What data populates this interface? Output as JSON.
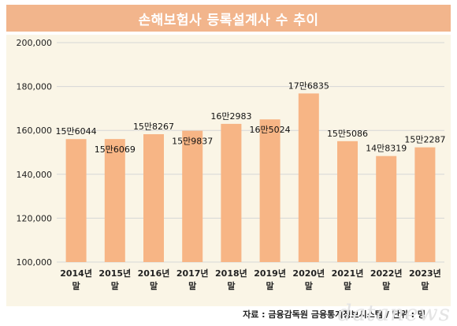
{
  "header": {
    "title": "손해보험사 등록설계사 수 추이"
  },
  "footer": {
    "source": "자료 : 금융감독원 금융통계정보시스템 / 단위 : 명"
  },
  "watermark": {
    "text": "datanews"
  },
  "colors": {
    "bar": "#f7b585",
    "title_bg": "#f2b58c",
    "panel_bg": "#faf5e6",
    "grid": "#d6d6d6"
  },
  "chart_data": {
    "type": "bar",
    "title": "손해보험사 등록설계사 수 추이",
    "categories": [
      [
        "2014년",
        "말"
      ],
      [
        "2015년",
        "말"
      ],
      [
        "2016년",
        "말"
      ],
      [
        "2017년",
        "말"
      ],
      [
        "2018년",
        "말"
      ],
      [
        "2019년",
        "말"
      ],
      [
        "2020년",
        "말"
      ],
      [
        "2021년",
        "말"
      ],
      [
        "2022년",
        "말"
      ],
      [
        "2023년",
        "말"
      ]
    ],
    "values": [
      156044,
      156069,
      158267,
      159837,
      162983,
      165024,
      176835,
      155086,
      148319,
      152287
    ],
    "data_labels": [
      "15만6044",
      "15만6069",
      "15만8267",
      "15만9837",
      "16만2983",
      "16만5024",
      "17만6835",
      "15만5086",
      "14만8319",
      "15만2287"
    ],
    "label_position": [
      "above",
      "inside",
      "above",
      "inside",
      "above",
      "inside",
      "above",
      "above",
      "above",
      "above"
    ],
    "y_ticks": [
      "100,000",
      "120,000",
      "140,000",
      "160,000",
      "180,000",
      "200,000"
    ],
    "ylim": [
      100000,
      200000
    ],
    "grid": true
  }
}
